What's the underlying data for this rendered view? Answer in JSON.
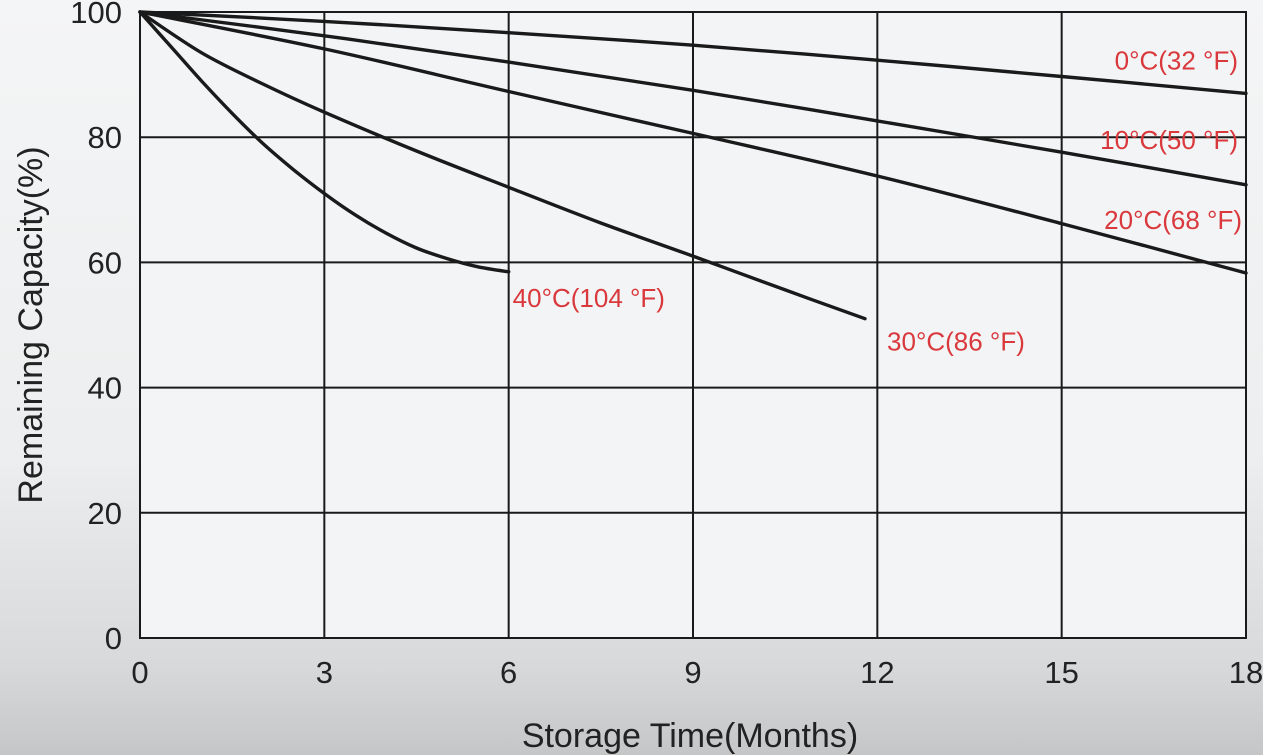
{
  "chart_data": {
    "type": "line",
    "xlabel": "Storage Time(Months)",
    "ylabel": "Remaining Capacity(%)",
    "xlim": [
      0,
      18
    ],
    "ylim": [
      0,
      100
    ],
    "x_ticks": [
      0,
      3,
      6,
      9,
      12,
      15,
      18
    ],
    "y_ticks": [
      0,
      20,
      40,
      60,
      80,
      100
    ],
    "grid": true,
    "series_color": "#1a1a1a",
    "label_color": "#d9383c",
    "series": [
      {
        "name": "0°C(32 °F)",
        "x": [
          0,
          3,
          6,
          9,
          12,
          15,
          18
        ],
        "y": [
          100,
          98.5,
          96.7,
          94.7,
          92.3,
          89.7,
          87.0
        ]
      },
      {
        "name": "10°C(50 °F)",
        "x": [
          0,
          3,
          6,
          9,
          12,
          15,
          18
        ],
        "y": [
          100,
          96.2,
          92.0,
          87.5,
          82.6,
          77.6,
          72.4
        ]
      },
      {
        "name": "20°C(68 °F)",
        "x": [
          0,
          3,
          6,
          9,
          12,
          15,
          18
        ],
        "y": [
          100,
          94.1,
          87.3,
          80.6,
          73.8,
          66.2,
          58.3
        ]
      },
      {
        "name": "30°C(86 °F)",
        "x": [
          0,
          1,
          2,
          3,
          4.5,
          6,
          7.5,
          9,
          10.5,
          11.8
        ],
        "y": [
          100,
          93.5,
          88.5,
          84.0,
          77.8,
          72.0,
          66.3,
          61.0,
          55.6,
          51.0
        ]
      },
      {
        "name": "40°C(104 °F)",
        "x": [
          0,
          0.5,
          1,
          1.5,
          2,
          2.5,
          3,
          3.5,
          4,
          4.5,
          5,
          5.5,
          6
        ],
        "y": [
          100,
          94.5,
          89.0,
          83.8,
          79.0,
          74.8,
          71.0,
          67.6,
          64.7,
          62.3,
          60.6,
          59.3,
          58.5
        ]
      }
    ]
  }
}
